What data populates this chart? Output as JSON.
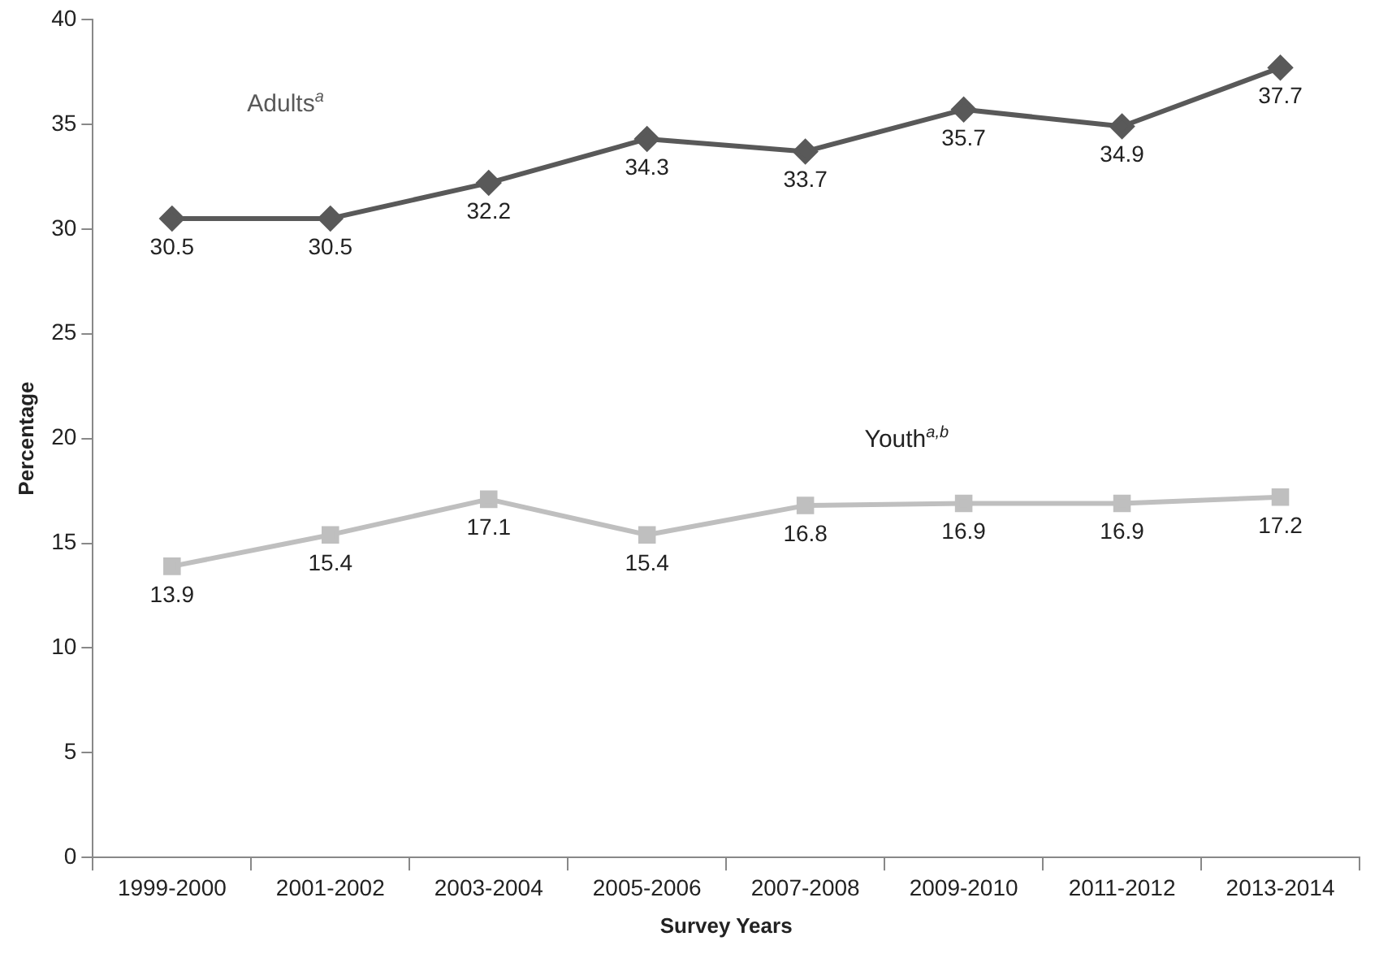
{
  "chart_data": {
    "type": "line",
    "xlabel": "Survey Years",
    "ylabel": "Percentage",
    "categories": [
      "1999-2000",
      "2001-2002",
      "2003-2004",
      "2005-2006",
      "2007-2008",
      "2009-2010",
      "2011-2012",
      "2013-2014"
    ],
    "series": [
      {
        "name": "Adults$^{a}$",
        "color": "#595959",
        "marker": "diamond",
        "values": [
          30.5,
          30.5,
          32.2,
          34.3,
          33.7,
          35.7,
          34.9,
          37.7
        ]
      },
      {
        "name": "Youth$^{a,b}$",
        "color": "#bfbfbf",
        "marker": "square",
        "values": [
          13.9,
          15.4,
          17.1,
          15.4,
          16.8,
          16.9,
          16.9,
          17.2
        ]
      }
    ],
    "ylim": [
      0,
      40
    ],
    "yticks": [
      0,
      5,
      10,
      15,
      20,
      25,
      30,
      35,
      40
    ],
    "grid": false,
    "legend": false,
    "data_labels": true,
    "line_style": "solid"
  }
}
